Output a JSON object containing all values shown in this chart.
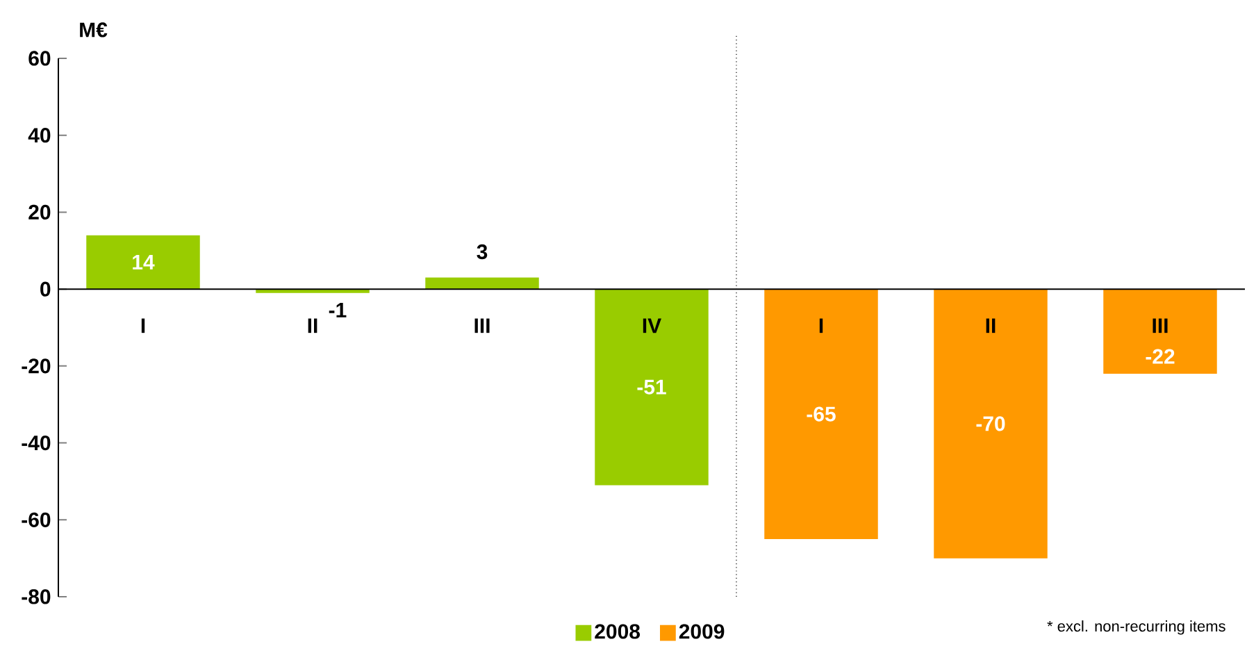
{
  "chart_data": {
    "type": "bar",
    "ylabel": "M€",
    "categories": [
      "I",
      "II",
      "III",
      "IV",
      "I",
      "II",
      "III"
    ],
    "series": [
      {
        "name": "2008",
        "color": "#99cc00",
        "values": [
          14,
          -1,
          3,
          -51,
          null,
          null,
          null
        ]
      },
      {
        "name": "2009",
        "color": "#ff9900",
        "values": [
          null,
          null,
          null,
          null,
          -65,
          -70,
          -22
        ]
      }
    ],
    "ylim": [
      -80,
      60
    ],
    "yticks": [
      -80,
      -60,
      -40,
      -20,
      0,
      20,
      40,
      60
    ],
    "data_labels": true,
    "legend": "bottom",
    "annotations": [
      "* excl. non-recurring items"
    ]
  }
}
